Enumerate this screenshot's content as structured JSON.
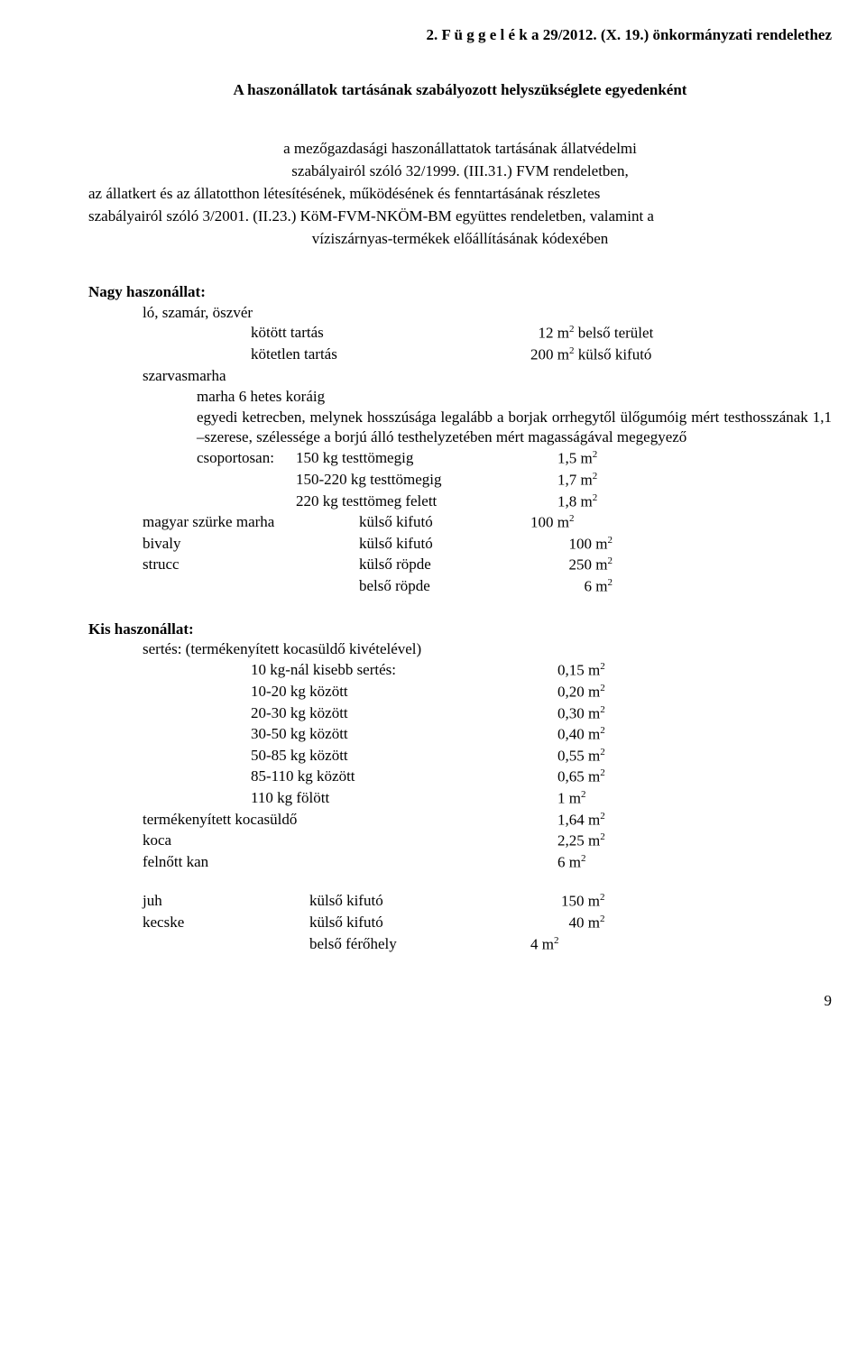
{
  "appendix_title": "2. F ü g g e l é k a 29/2012. (X. 19.) önkormányzati rendelethez",
  "subtitle": "A haszonállatok tartásának szabályozott helyszükséglete egyedenként",
  "intro": {
    "line1": "a mezőgazdasági haszonállattatok tartásának állatvédelmi",
    "line2": "szabályairól szóló 32/1999. (III.31.) FVM rendeletben,",
    "line3": "az állatkert és az állatotthon létesítésének, működésének és fenntartásának részletes",
    "line4": "szabályairól szóló 3/2001. (II.23.) KöM-FVM-NKÖM-BM együttes rendeletben, valamint a",
    "line5": "víziszárnyas-termékek előállításának kódexében"
  },
  "nagy": {
    "label": "Nagy haszonállat:",
    "lo": "ló, szamár, öszvér",
    "kotott": {
      "k": "kötött tartás",
      "v": "12 m",
      "u": " belső terület"
    },
    "kotetlen": {
      "k": "kötetlen tartás",
      "v": "200 m",
      "u": " külső kifutó"
    },
    "szarvas": "szarvasmarha",
    "marha6": "marha 6 hetes koráig",
    "just1": "egyedi ketrecben, melynek hosszúsága legalább a borjak orrhegytől ülőgumóig mért testhosszának 1,1 –szerese, szélessége a borjú álló testhelyzetében mért magasságával megegyező",
    "csop_label": "csoportosan:",
    "csop": [
      {
        "k": "150 kg testtömegig",
        "v": "1,5 m"
      },
      {
        "k": "150-220 kg testtömegig",
        "v": "1,7 m"
      },
      {
        "k": "220 kg testtömeg felett",
        "v": "1,8 m"
      }
    ],
    "mszm": {
      "a": "magyar szürke marha",
      "b": "külső kifutó",
      "c": "100   m"
    },
    "bivaly": {
      "a": "bivaly",
      "b": "külső kifutó",
      "c": "100   m"
    },
    "strucc": {
      "a": "strucc",
      "b": "külső röpde",
      "c": "250   m"
    },
    "strucc2": {
      "b": "belső röpde",
      "c": "6   m"
    }
  },
  "kis": {
    "label": "Kis haszonállat:",
    "sertes": "sertés: (termékenyített kocasüldő kivételével)",
    "rows": [
      {
        "k": "10 kg-nál kisebb sertés:",
        "v": "0,15 m"
      },
      {
        "k": "10-20 kg között",
        "v": "0,20 m"
      },
      {
        "k": "20-30 kg között",
        "v": "0,30 m"
      },
      {
        "k": "30-50 kg között",
        "v": "0,40 m"
      },
      {
        "k": "50-85 kg között",
        "v": "0,55 m"
      },
      {
        "k": "85-110 kg között",
        "v": "0,65 m"
      },
      {
        "k": "110 kg fölött",
        "v": "1      m"
      }
    ],
    "tk": {
      "k": "termékenyített kocasüldő",
      "v": "1,64 m"
    },
    "koca": {
      "k": "koca",
      "v": "2,25 m"
    },
    "kan": {
      "k": "felnőtt kan",
      "v": "6      m"
    },
    "juh": {
      "a": "juh",
      "b": "külső kifutó",
      "c": "150 m"
    },
    "kecske": {
      "a": "kecske",
      "b": "külső kifutó",
      "c": "40 m"
    },
    "kecske2": {
      "b": "belső férőhely",
      "c": "4 m"
    }
  },
  "page_num": "9"
}
